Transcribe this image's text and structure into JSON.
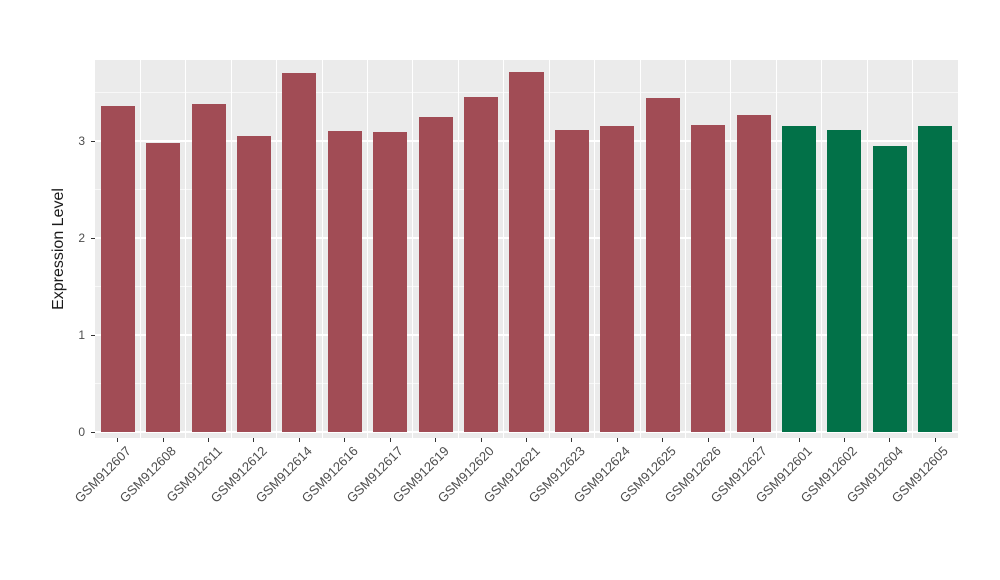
{
  "chart_data": {
    "type": "bar",
    "title": "",
    "xlabel": "",
    "ylabel": "Expression Level",
    "ylim": [
      0,
      3.84
    ],
    "yticks": [
      0,
      1,
      2,
      3
    ],
    "ytick_labels": [
      "0",
      "1",
      "2",
      "3"
    ],
    "yticks_minor": [
      0.5,
      1.5,
      2.5,
      3.5
    ],
    "grid": true,
    "legend": "none",
    "categories": [
      "GSM912607",
      "GSM912608",
      "GSM912611",
      "GSM912612",
      "GSM912614",
      "GSM912616",
      "GSM912617",
      "GSM912619",
      "GSM912620",
      "GSM912621",
      "GSM912623",
      "GSM912624",
      "GSM912625",
      "GSM912626",
      "GSM912627",
      "GSM912601",
      "GSM912602",
      "GSM912604",
      "GSM912605"
    ],
    "values": [
      3.36,
      2.98,
      3.38,
      3.05,
      3.7,
      3.1,
      3.09,
      3.25,
      3.45,
      3.71,
      3.11,
      3.15,
      3.44,
      3.16,
      3.27,
      3.15,
      3.11,
      2.95,
      3.15
    ],
    "bar_colors": [
      "#A14C55",
      "#A14C55",
      "#A14C55",
      "#A14C55",
      "#A14C55",
      "#A14C55",
      "#A14C55",
      "#A14C55",
      "#A14C55",
      "#A14C55",
      "#A14C55",
      "#A14C55",
      "#A14C55",
      "#A14C55",
      "#A14C55",
      "#027148",
      "#027148",
      "#027148",
      "#027148"
    ],
    "palette": {
      "maroon": "#A14C55",
      "green": "#027148",
      "panel_background": "#EBEBEB",
      "gridline": "#FFFFFF",
      "axis_text": "#4D4D4D",
      "axis_title": "#1A1A1A"
    }
  }
}
